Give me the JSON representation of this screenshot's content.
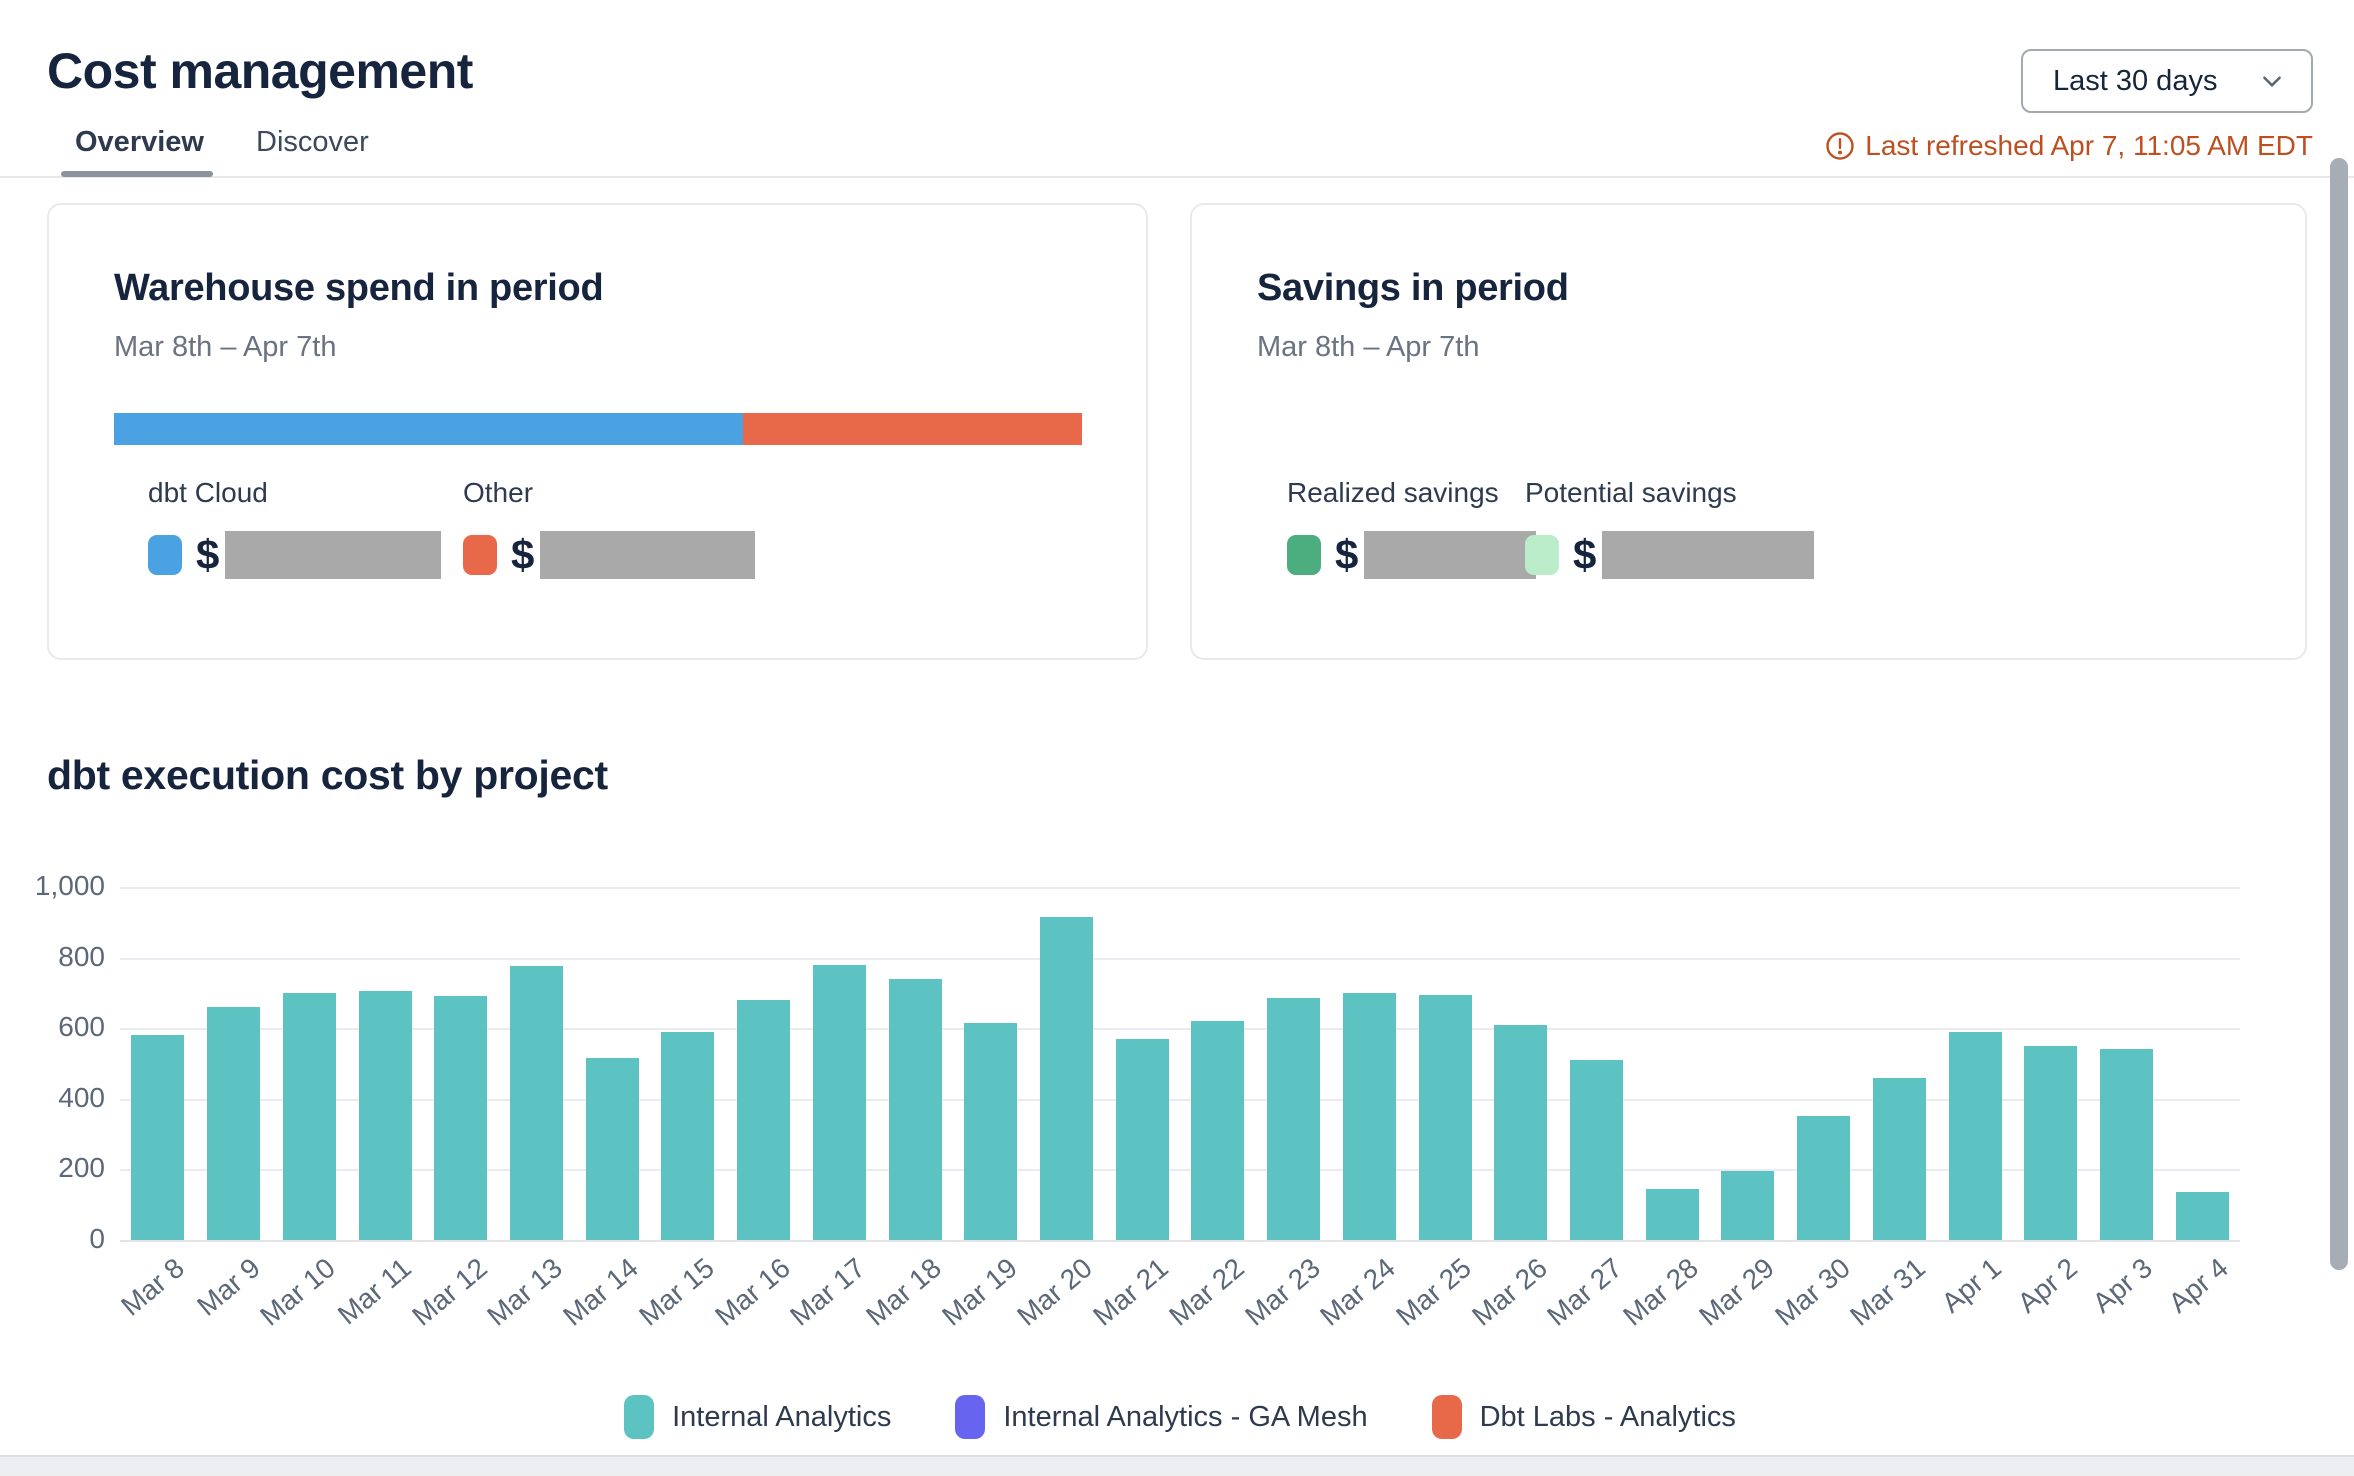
{
  "header": {
    "title": "Cost management",
    "tabs": [
      {
        "label": "Overview",
        "active": true
      },
      {
        "label": "Discover",
        "active": false
      }
    ],
    "date_range_selector": {
      "value": "Last 30 days"
    },
    "last_refreshed": "Last refreshed Apr 7, 11:05 AM EDT"
  },
  "cards": {
    "warehouse_spend": {
      "title": "Warehouse spend in period",
      "subtitle": "Mar 8th – Apr 7th",
      "bar_segments": [
        {
          "name": "dbt Cloud",
          "color": "#4aa2e2",
          "fraction": 0.65
        },
        {
          "name": "Other",
          "color": "#e8684a",
          "fraction": 0.35
        }
      ],
      "legend": [
        {
          "label": "dbt Cloud",
          "color": "#4aa2e2",
          "currency": "$",
          "value_redacted": true
        },
        {
          "label": "Other",
          "color": "#e8684a",
          "currency": "$",
          "value_redacted": true
        }
      ]
    },
    "savings": {
      "title": "Savings in period",
      "subtitle": "Mar 8th – Apr 7th",
      "legend": [
        {
          "label": "Realized savings",
          "color": "#4cae7e",
          "currency": "$",
          "value_redacted": true
        },
        {
          "label": "Potential savings",
          "color": "#bbedcb",
          "currency": "$",
          "value_redacted": true
        }
      ]
    }
  },
  "chart_section": {
    "title": "dbt execution cost by project"
  },
  "chart_data": {
    "type": "bar",
    "title": "dbt execution cost by project",
    "categories": [
      "Mar 8",
      "Mar 9",
      "Mar 10",
      "Mar 11",
      "Mar 12",
      "Mar 13",
      "Mar 14",
      "Mar 15",
      "Mar 16",
      "Mar 17",
      "Mar 18",
      "Mar 19",
      "Mar 20",
      "Mar 21",
      "Mar 22",
      "Mar 23",
      "Mar 24",
      "Mar 25",
      "Mar 26",
      "Mar 27",
      "Mar 28",
      "Mar 29",
      "Mar 30",
      "Mar 31",
      "Apr 1",
      "Apr 2",
      "Apr 3",
      "Apr 4"
    ],
    "series": [
      {
        "name": "Internal Analytics",
        "color": "#5cc3c2",
        "values": [
          580,
          660,
          700,
          705,
          690,
          775,
          515,
          590,
          680,
          780,
          740,
          615,
          915,
          570,
          620,
          685,
          700,
          695,
          610,
          510,
          145,
          195,
          350,
          460,
          590,
          550,
          540,
          135
        ]
      },
      {
        "name": "Internal Analytics - GA Mesh",
        "color": "#6765f0",
        "values": []
      },
      {
        "name": "Dbt Labs - Analytics",
        "color": "#e8684a",
        "values": []
      }
    ],
    "xlabel": "",
    "ylabel": "",
    "ylim": [
      0,
      1000
    ],
    "yticks": [
      0,
      200,
      400,
      600,
      800,
      1000
    ],
    "ytick_labels": [
      "0",
      "200",
      "400",
      "600",
      "800",
      "1,000"
    ],
    "grid": true,
    "legend_position": "bottom"
  }
}
